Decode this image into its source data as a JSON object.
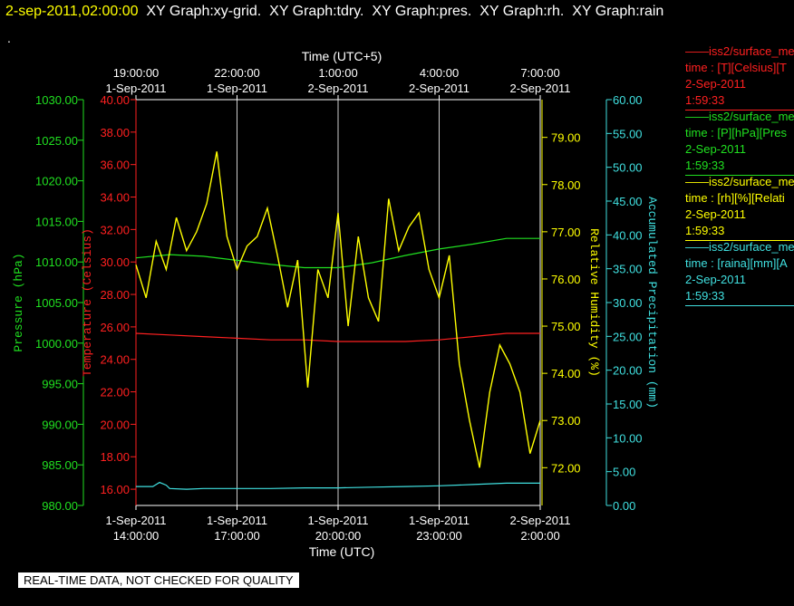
{
  "header": {
    "timestamp": "2-sep-2011,02:00:00",
    "graphs": [
      "XY Graph:xy-grid.",
      "XY Graph:tdry.",
      "XY Graph:pres.",
      "XY Graph:rh.",
      "XY Graph:rain"
    ],
    "dot": "."
  },
  "notice": "REAL-TIME DATA, NOT CHECKED FOR QUALITY",
  "legend": [
    {
      "name": "iss2/surface_me",
      "units": "time : [T][Celsius][T",
      "date": "2-Sep-2011",
      "time": "1:59:33",
      "color": "#ff2020"
    },
    {
      "name": "iss2/surface_me",
      "units": "time : [P][hPa][Pres",
      "date": "2-Sep-2011",
      "time": "1:59:33",
      "color": "#20e020"
    },
    {
      "name": "iss2/surface_me",
      "units": "time : [rh][%][Relati",
      "date": "2-Sep-2011",
      "time": "1:59:33",
      "color": "#ffff00"
    },
    {
      "name": "iss2/surface_me",
      "units": "time : [raina][mm][A",
      "date": "2-Sep-2011",
      "time": "1:59:33",
      "color": "#40e0e0"
    }
  ],
  "chart_data": {
    "type": "line",
    "top_axis": {
      "label": "Time (UTC+5)",
      "ticks": [
        {
          "time": "19:00:00",
          "date": "1-Sep-2011",
          "hour": 0
        },
        {
          "time": "22:00:00",
          "date": "1-Sep-2011",
          "hour": 3
        },
        {
          "time": "1:00:00",
          "date": "2-Sep-2011",
          "hour": 6
        },
        {
          "time": "4:00:00",
          "date": "2-Sep-2011",
          "hour": 9
        },
        {
          "time": "7:00:00",
          "date": "2-Sep-2011",
          "hour": 12
        }
      ]
    },
    "bottom_axis": {
      "label": "Time (UTC)",
      "ticks": [
        {
          "date": "1-Sep-2011",
          "time": "14:00:00",
          "hour": 0
        },
        {
          "date": "1-Sep-2011",
          "time": "17:00:00",
          "hour": 3
        },
        {
          "date": "1-Sep-2011",
          "time": "20:00:00",
          "hour": 6
        },
        {
          "date": "1-Sep-2011",
          "time": "23:00:00",
          "hour": 9
        },
        {
          "date": "2-Sep-2011",
          "time": "2:00:00",
          "hour": 12
        }
      ],
      "range": [
        0,
        12
      ]
    },
    "axes": {
      "pressure": {
        "label": "Pressure (hPa)",
        "color": "#20e020",
        "range": [
          980,
          1030
        ],
        "ticks": [
          "1030.00",
          "1025.00",
          "1020.00",
          "1015.00",
          "1010.00",
          "1005.00",
          "1000.00",
          "995.00",
          "990.00",
          "985.00",
          "980.00"
        ]
      },
      "temperature": {
        "label": "Temperature (Celsius)",
        "color": "#ff2020",
        "range": [
          15,
          40
        ],
        "ticks": [
          "40.00",
          "38.00",
          "36.00",
          "34.00",
          "32.00",
          "30.00",
          "28.00",
          "26.00",
          "24.00",
          "22.00",
          "20.00",
          "18.00",
          "16.00"
        ]
      },
      "humidity": {
        "label": "Relative Humidity (%)",
        "color": "#ffff00",
        "range": [
          71.2,
          79.8
        ],
        "ticks": [
          "79.00",
          "78.00",
          "77.00",
          "76.00",
          "75.00",
          "74.00",
          "73.00",
          "72.00"
        ]
      },
      "precip": {
        "label": "Accumulated Precipitation (mm)",
        "color": "#40e0e0",
        "range": [
          0,
          60
        ],
        "ticks": [
          "60.00",
          "55.00",
          "50.00",
          "45.00",
          "40.00",
          "35.00",
          "30.00",
          "25.00",
          "20.00",
          "15.00",
          "10.00",
          "5.00",
          "0.00"
        ]
      }
    },
    "series": [
      {
        "name": "Pressure",
        "axis": "pressure",
        "color": "#20e020",
        "x": [
          0,
          1,
          2,
          3,
          4,
          5,
          6,
          7,
          8,
          9,
          10,
          11,
          12
        ],
        "y": [
          1010.5,
          1010.9,
          1010.7,
          1010.2,
          1009.7,
          1009.3,
          1009.3,
          1009.9,
          1010.8,
          1011.6,
          1012.2,
          1012.9,
          1012.9
        ]
      },
      {
        "name": "Temperature",
        "axis": "temperature",
        "color": "#ff2020",
        "x": [
          0,
          1,
          2,
          3,
          4,
          5,
          6,
          7,
          8,
          9,
          10,
          11,
          12
        ],
        "y": [
          25.6,
          25.5,
          25.4,
          25.3,
          25.2,
          25.2,
          25.1,
          25.1,
          25.1,
          25.2,
          25.4,
          25.6,
          25.6
        ]
      },
      {
        "name": "Relative Humidity",
        "axis": "humidity",
        "color": "#ffff00",
        "x": [
          0,
          0.3,
          0.6,
          0.9,
          1.2,
          1.5,
          1.8,
          2.1,
          2.4,
          2.7,
          3.0,
          3.3,
          3.6,
          3.9,
          4.2,
          4.5,
          4.8,
          5.1,
          5.4,
          5.7,
          6.0,
          6.3,
          6.6,
          6.9,
          7.2,
          7.5,
          7.8,
          8.1,
          8.4,
          8.7,
          9.0,
          9.3,
          9.6,
          9.9,
          10.2,
          10.5,
          10.8,
          11.1,
          11.4,
          11.7,
          12.0
        ],
        "y": [
          76.3,
          75.6,
          76.8,
          76.2,
          77.3,
          76.6,
          77.0,
          77.6,
          78.7,
          76.9,
          76.2,
          76.7,
          76.9,
          77.5,
          76.5,
          75.4,
          76.4,
          73.7,
          76.2,
          75.6,
          77.4,
          75.0,
          76.9,
          75.6,
          75.1,
          77.7,
          76.6,
          77.1,
          77.4,
          76.2,
          75.6,
          76.5,
          74.2,
          73.0,
          72.0,
          73.6,
          74.6,
          74.2,
          73.6,
          72.3,
          73.0
        ]
      },
      {
        "name": "Accumulated Precipitation",
        "axis": "precip",
        "color": "#40e0e0",
        "x": [
          0,
          0.5,
          0.7,
          0.9,
          1.0,
          1.5,
          2,
          3,
          4,
          5,
          6,
          7,
          8,
          9,
          10,
          11,
          12
        ],
        "y": [
          2.8,
          2.8,
          3.4,
          3.0,
          2.5,
          2.4,
          2.5,
          2.5,
          2.5,
          2.6,
          2.6,
          2.7,
          2.8,
          2.9,
          3.1,
          3.3,
          3.3
        ]
      }
    ],
    "grid": true
  }
}
